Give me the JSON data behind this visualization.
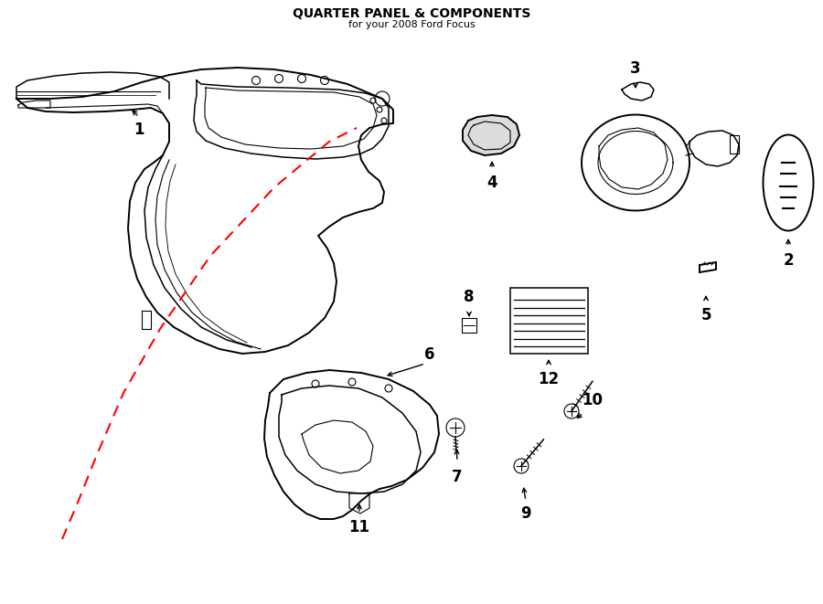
{
  "title": "QUARTER PANEL & COMPONENTS",
  "subtitle": "for your 2008 Ford Focus",
  "bg_color": "#ffffff",
  "line_color": "#000000",
  "red_dash_color": "#ff0000",
  "text_color": "#000000",
  "title_fontsize": 10,
  "subtitle_fontsize": 8,
  "label_fontsize": 12
}
